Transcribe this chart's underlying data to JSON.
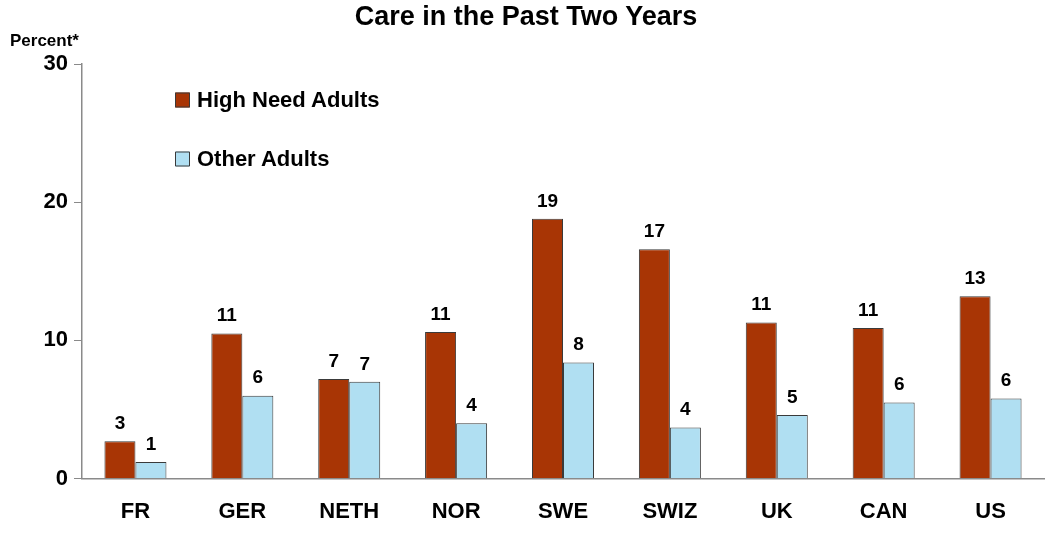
{
  "chart_data": {
    "type": "bar",
    "title": "Care in the Past Two Years",
    "ylabel": "Percent*",
    "categories": [
      "FR",
      "GER",
      "NETH",
      "NOR",
      "SWE",
      "SWIZ",
      "UK",
      "CAN",
      "US"
    ],
    "series": [
      {
        "name": "High Need Adults",
        "color": "#a83505",
        "values": [
          2.7,
          10.5,
          7.2,
          10.6,
          18.8,
          16.6,
          11.3,
          10.9,
          13.2
        ],
        "value_labels": [
          "3",
          "11",
          "7",
          "11",
          "19",
          "17",
          "11",
          "11",
          "13"
        ]
      },
      {
        "name": "Other Adults",
        "color": "#b0dff2",
        "values": [
          1.2,
          6.0,
          7.0,
          4.0,
          8.4,
          3.7,
          4.6,
          5.5,
          5.8
        ],
        "value_labels": [
          "1",
          "6",
          "7",
          "4",
          "8",
          "4",
          "5",
          "6",
          "6"
        ]
      }
    ],
    "ylim": [
      0,
      30
    ],
    "yticks": [
      0,
      10,
      20,
      30
    ],
    "legend": "top left"
  }
}
